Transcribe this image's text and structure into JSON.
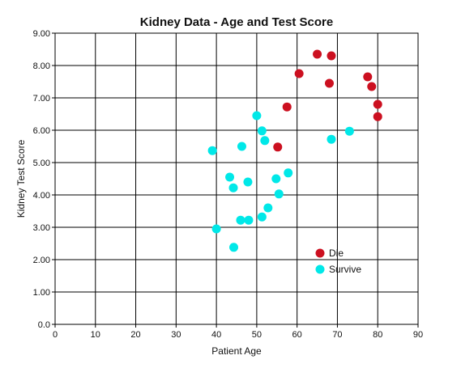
{
  "chart_data": {
    "type": "scatter",
    "title": "Kidney Data - Age and Test Score",
    "xlabel": "Patient Age",
    "ylabel": "Kidney Test Score",
    "xlim": [
      0,
      90
    ],
    "ylim": [
      0,
      9
    ],
    "x_ticks": [
      "0",
      "10",
      "20",
      "30",
      "40",
      "50",
      "60",
      "70",
      "80",
      "90"
    ],
    "y_ticks": [
      "0.0",
      "1.00",
      "2.00",
      "3.00",
      "4.00",
      "5.00",
      "6.00",
      "7.00",
      "8.00",
      "9.00"
    ],
    "grid": true,
    "legend_position": "lower-right",
    "series": [
      {
        "name": "Die",
        "color": "#cc1020",
        "points": [
          [
            65,
            8.35
          ],
          [
            68.5,
            8.3
          ],
          [
            60.5,
            7.75
          ],
          [
            68,
            7.45
          ],
          [
            77.5,
            7.65
          ],
          [
            78.5,
            7.35
          ],
          [
            80,
            6.8
          ],
          [
            80,
            6.42
          ],
          [
            57.5,
            6.72
          ],
          [
            55.2,
            5.48
          ]
        ]
      },
      {
        "name": "Survive",
        "color": "#00e8e8",
        "points": [
          [
            50,
            6.45
          ],
          [
            51.3,
            5.98
          ],
          [
            52,
            5.68
          ],
          [
            46.3,
            5.5
          ],
          [
            39,
            5.37
          ],
          [
            73,
            5.97
          ],
          [
            68.5,
            5.72
          ],
          [
            43.3,
            4.55
          ],
          [
            44.2,
            4.22
          ],
          [
            47.8,
            4.4
          ],
          [
            54.8,
            4.5
          ],
          [
            57.8,
            4.68
          ],
          [
            55.5,
            4.03
          ],
          [
            52.8,
            3.6
          ],
          [
            51.3,
            3.32
          ],
          [
            46,
            3.22
          ],
          [
            48,
            3.22
          ],
          [
            40,
            2.95
          ],
          [
            44.3,
            2.38
          ]
        ]
      }
    ]
  }
}
